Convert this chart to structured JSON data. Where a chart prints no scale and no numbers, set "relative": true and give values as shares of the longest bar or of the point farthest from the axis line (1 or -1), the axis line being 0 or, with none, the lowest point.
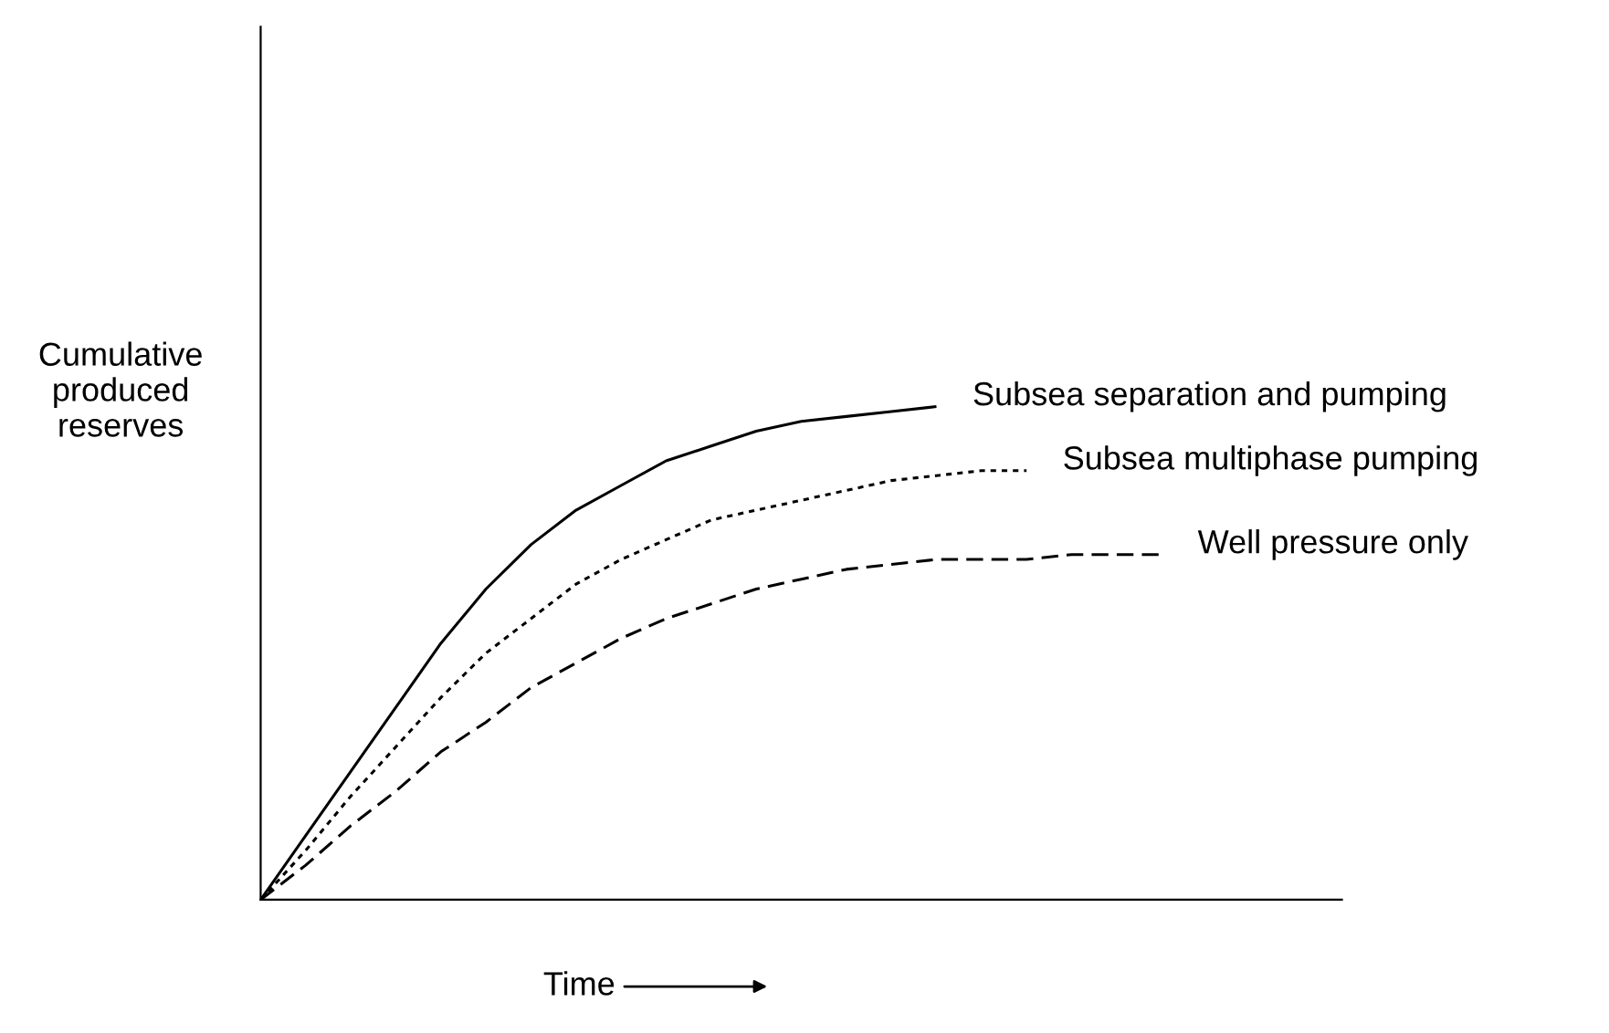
{
  "chart_data": {
    "type": "line",
    "relative": true,
    "xlabel": "Time",
    "ylabel": "Cumulative\nproduced\nreserves",
    "categories": [
      null,
      null,
      null,
      null,
      null,
      null,
      null,
      null,
      null,
      null,
      null,
      null,
      null,
      null,
      null,
      null,
      null,
      null,
      null,
      null,
      null,
      null,
      null,
      null,
      null
    ],
    "series": [
      {
        "name": "Subsea separation and pumping",
        "color": "#000000",
        "line_style": "solid",
        "values": [
          0,
          0.13,
          0.26,
          0.39,
          0.52,
          0.63,
          0.72,
          0.79,
          0.84,
          0.89,
          0.92,
          0.95,
          0.97,
          0.98,
          0.99,
          1,
          null,
          null,
          null,
          null,
          null,
          null,
          null,
          null,
          null
        ]
      },
      {
        "name": "Subsea multiphase pumping",
        "color": "#000000",
        "line_style": "dotted",
        "values": [
          0,
          0.1,
          0.21,
          0.31,
          0.41,
          0.5,
          0.57,
          0.64,
          0.69,
          0.73,
          0.77,
          0.79,
          0.81,
          0.83,
          0.85,
          0.86,
          0.87,
          0.87,
          null,
          null,
          null,
          null,
          null,
          null,
          null
        ]
      },
      {
        "name": "Well pressure only",
        "color": "#000000",
        "line_style": "dashed",
        "values": [
          0,
          0.07,
          0.15,
          0.22,
          0.3,
          0.36,
          0.43,
          0.48,
          0.53,
          0.57,
          0.6,
          0.63,
          0.65,
          0.67,
          0.68,
          0.69,
          0.69,
          0.69,
          0.7,
          0.7,
          0.7,
          null,
          null,
          null,
          null
        ]
      }
    ]
  }
}
